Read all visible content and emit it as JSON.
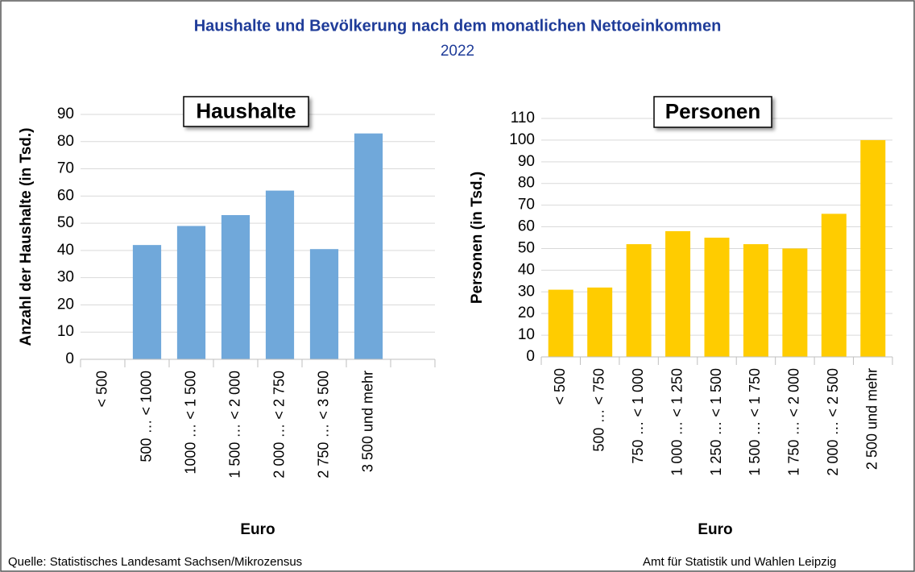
{
  "header": {
    "title": "Haushalte und Bevölkerung nach dem monatlichen Nettoeinkommen",
    "subtitle": "2022"
  },
  "chart_data": [
    {
      "type": "bar",
      "title": "Haushalte",
      "ylabel": "Anzahl der Haushalte (in Tsd.)",
      "xlabel": "Euro",
      "categories": [
        "< 500",
        "500 … < 1000",
        "1000 … < 1 500",
        "1 500 … < 2 000",
        "2 000 … < 2 750",
        "2 750 … < 3 500",
        "3 500 und mehr",
        null
      ],
      "values": [
        null,
        42,
        49,
        53,
        62,
        40.5,
        83,
        null
      ],
      "color": "#70a8da",
      "ylim": [
        0,
        90
      ],
      "yticks": [
        0,
        10,
        20,
        30,
        40,
        50,
        60,
        70,
        80,
        90
      ],
      "grid": true
    },
    {
      "type": "bar",
      "title": "Personen",
      "ylabel": "Personen (in Tsd.)",
      "xlabel": "Euro",
      "categories": [
        "< 500",
        "500 … < 750",
        "750 … < 1 000",
        "1 000 … < 1 250",
        "1 250 … < 1 500",
        "1 500 … < 1 750",
        "1 750 … < 2 000",
        "2 000 … < 2 500",
        "2 500 und mehr"
      ],
      "values": [
        31,
        32,
        52,
        58,
        55,
        52,
        50,
        66,
        100
      ],
      "color": "#ffcc00",
      "ylim": [
        0,
        110
      ],
      "yticks": [
        0,
        10,
        20,
        30,
        40,
        50,
        60,
        70,
        80,
        90,
        100,
        110
      ],
      "grid": true
    }
  ],
  "footer": {
    "source": "Quelle: Statistisches Landesamt Sachsen/Mikrozensus",
    "credit": "Amt für Statistik und Wahlen Leipzig"
  }
}
